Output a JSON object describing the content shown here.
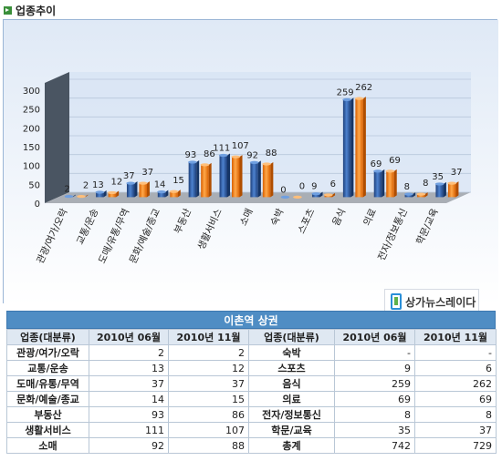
{
  "section_title": "업종추이",
  "logo": {
    "text": "상가뉴스레이다"
  },
  "chart_data": {
    "type": "bar",
    "title": "",
    "xlabel": "",
    "ylabel": "",
    "ylim": [
      0,
      300
    ],
    "yticks": [
      0,
      50,
      100,
      150,
      200,
      250,
      300
    ],
    "categories": [
      "관광/여가/오락",
      "교통/운송",
      "도매/유통/무역",
      "문화/예술/종교",
      "부동산",
      "생활서비스",
      "소매",
      "숙박",
      "스포츠",
      "음식",
      "의료",
      "전자/정보통신",
      "학문/교육"
    ],
    "series": [
      {
        "name": "2010년 06월",
        "color": "#2f5fa6",
        "values": [
          2,
          13,
          37,
          14,
          93,
          111,
          92,
          0,
          9,
          259,
          69,
          8,
          35
        ]
      },
      {
        "name": "2010년 11월",
        "color": "#ff7f10",
        "values": [
          2,
          12,
          37,
          15,
          86,
          107,
          88,
          0,
          6,
          262,
          69,
          8,
          37
        ]
      }
    ]
  },
  "table": {
    "title": "이촌역 상권",
    "headers": [
      "업종(대분류)",
      "2010년 06월",
      "2010년 11월",
      "업종(대분류)",
      "2010년 06월",
      "2010년 11월"
    ],
    "rows": [
      [
        "관광/여가/오락",
        "2",
        "2",
        "숙박",
        "-",
        "-"
      ],
      [
        "교통/운송",
        "13",
        "12",
        "스포츠",
        "9",
        "6"
      ],
      [
        "도매/유통/무역",
        "37",
        "37",
        "음식",
        "259",
        "262"
      ],
      [
        "문화/예술/종교",
        "14",
        "15",
        "의료",
        "69",
        "69"
      ],
      [
        "부동산",
        "93",
        "86",
        "전자/정보통신",
        "8",
        "8"
      ],
      [
        "생활서비스",
        "111",
        "107",
        "학문/교육",
        "35",
        "37"
      ],
      [
        "소매",
        "92",
        "88",
        "총계",
        "742",
        "729"
      ]
    ]
  }
}
